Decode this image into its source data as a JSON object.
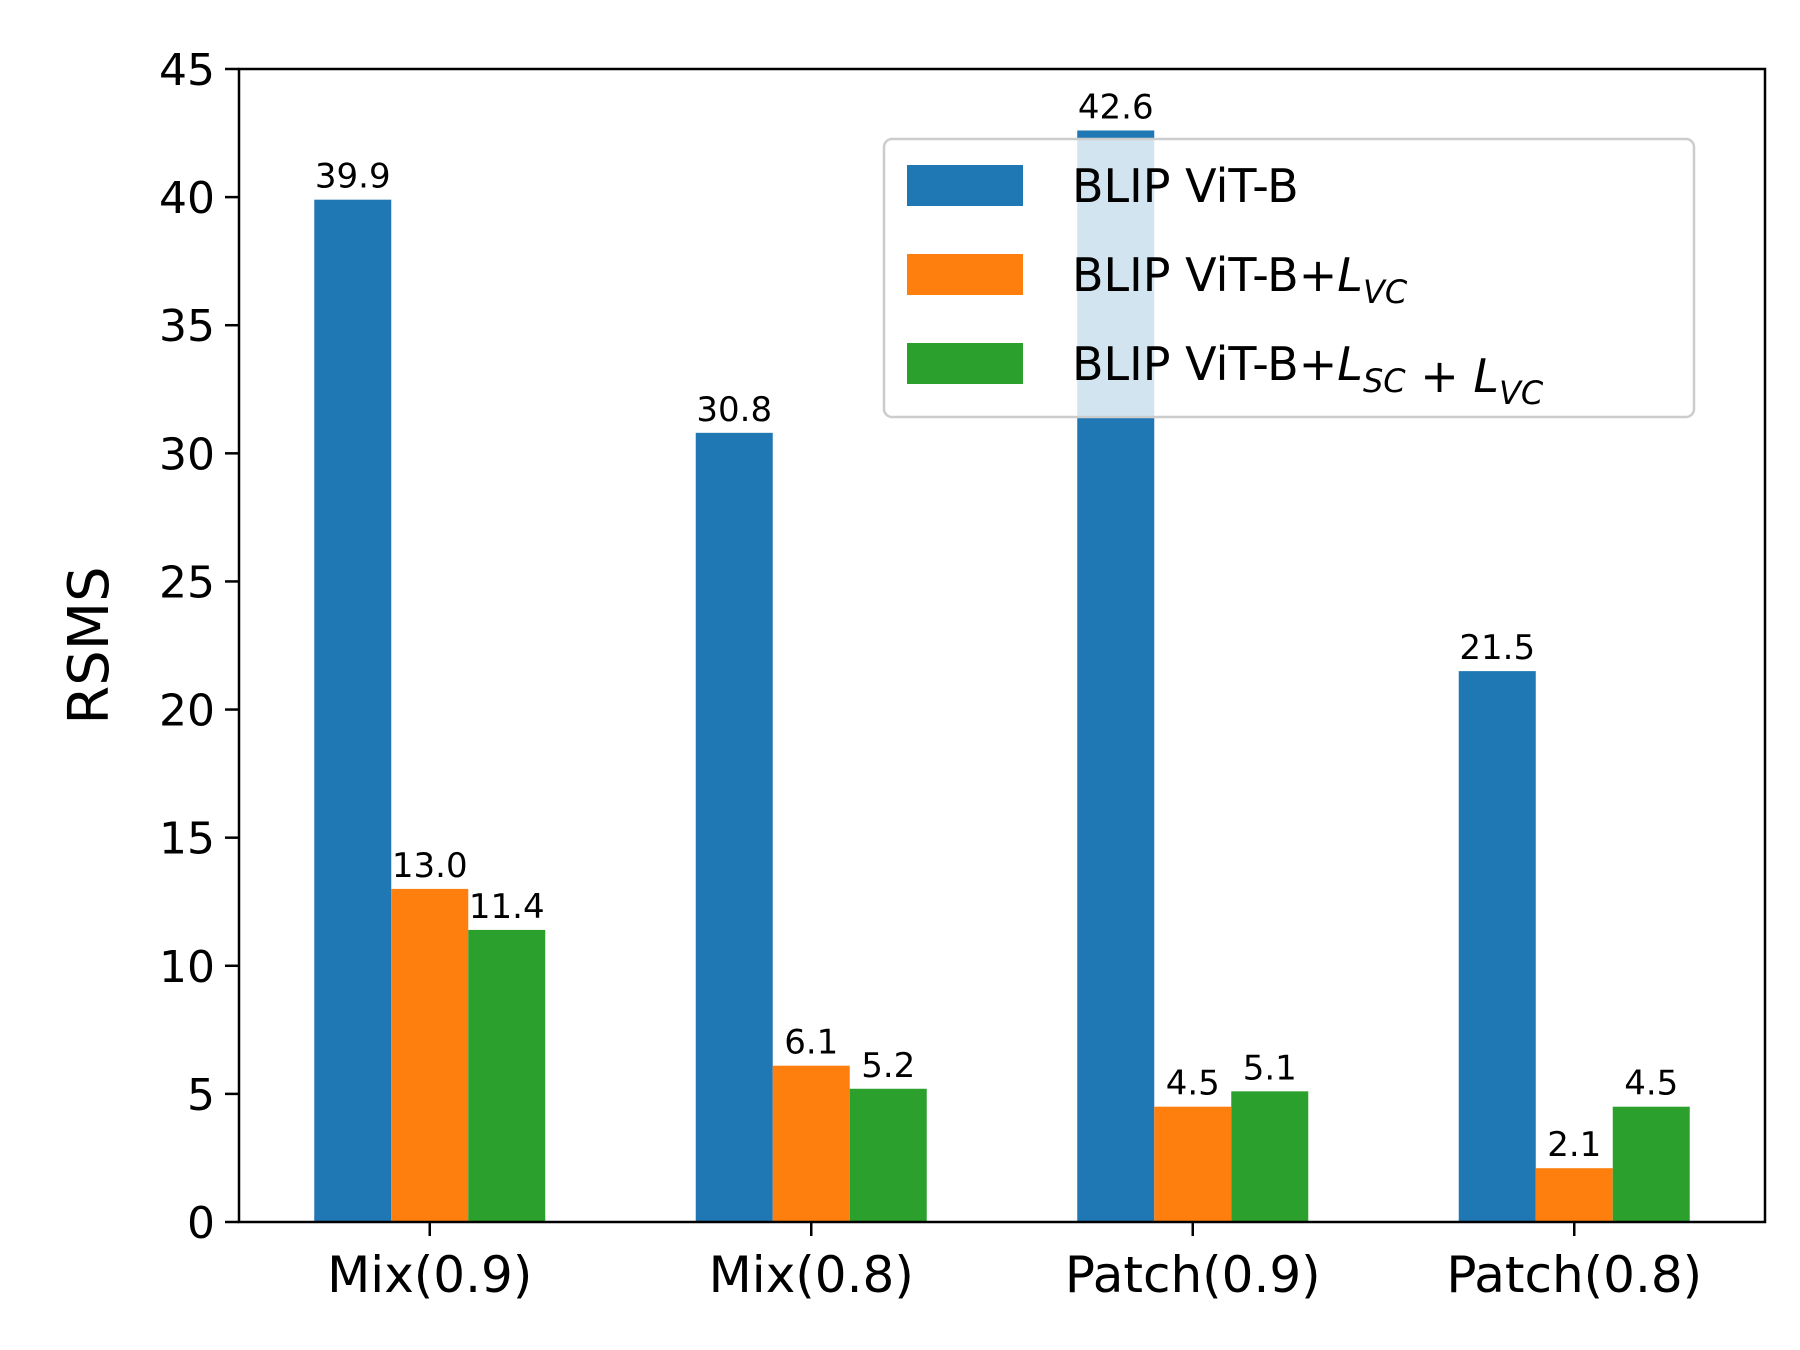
{
  "chart_data": {
    "type": "bar",
    "categories": [
      "Mix(0.9)",
      "Mix(0.8)",
      "Patch(0.9)",
      "Patch(0.8)"
    ],
    "series": [
      {
        "name": "BLIP ViT-B",
        "color": "#1f77b4",
        "values": [
          39.9,
          30.8,
          42.6,
          21.5
        ],
        "labels": [
          "39.9",
          "30.8",
          "42.6",
          "21.5"
        ]
      },
      {
        "name": "BLIP ViT-B+",
        "name_sub": [
          {
            "main": "L",
            "sub": "VC"
          }
        ],
        "color": "#ff7f0e",
        "values": [
          13.0,
          6.1,
          4.5,
          2.1
        ],
        "labels": [
          "13.0",
          "6.1",
          "4.5",
          "2.1"
        ]
      },
      {
        "name": "BLIP ViT-B+",
        "name_sub": [
          {
            "main": "L",
            "sub": "SC"
          },
          {
            "op": " + "
          },
          {
            "main": "L",
            "sub": "VC"
          }
        ],
        "color": "#2ca02c",
        "values": [
          11.4,
          5.2,
          5.1,
          4.5
        ],
        "labels": [
          "11.4",
          "5.2",
          "5.1",
          "4.5"
        ]
      }
    ],
    "ylabel": "RSMS",
    "xlabel": "",
    "ylim": [
      0,
      45
    ],
    "yticks": [
      "0",
      "5",
      "10",
      "15",
      "20",
      "25",
      "30",
      "35",
      "40",
      "45"
    ],
    "grid": false,
    "legend": "top-right"
  }
}
